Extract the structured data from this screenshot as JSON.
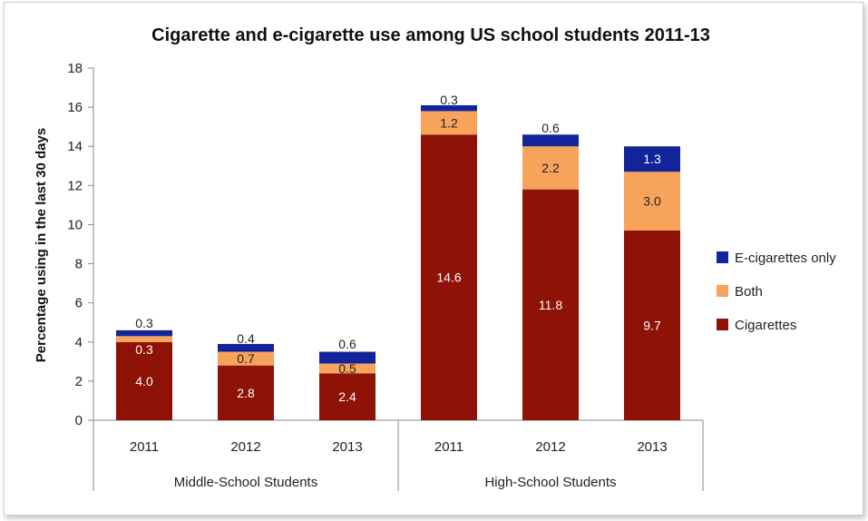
{
  "chart_data": {
    "type": "bar",
    "stacked": true,
    "title": "Cigarette and e-cigarette use among US school students 2011-13",
    "ylabel": "Percentage using in the last 30 days",
    "ylim": [
      0,
      18
    ],
    "yticks": [
      0,
      2,
      4,
      6,
      8,
      10,
      12,
      14,
      16,
      18
    ],
    "grid": false,
    "legend_position": "right",
    "groups": [
      "Middle-School Students",
      "High-School Students"
    ],
    "categories": [
      "2011",
      "2012",
      "2013",
      "2011",
      "2012",
      "2013"
    ],
    "category_group": [
      0,
      0,
      0,
      1,
      1,
      1
    ],
    "series": [
      {
        "name": "Cigarettes",
        "color": "#8e1206",
        "values": [
          4.0,
          2.8,
          2.4,
          14.6,
          11.8,
          9.7
        ],
        "labels": [
          "4.0",
          "2.8",
          "2.4",
          "14.6",
          "11.8",
          "9.7"
        ]
      },
      {
        "name": "Both",
        "color": "#f7a35c",
        "values": [
          0.3,
          0.7,
          0.5,
          1.2,
          2.2,
          3.0
        ],
        "labels": [
          "0.3",
          "0.7",
          "0.5",
          "1.2",
          "2.2",
          "3.0"
        ]
      },
      {
        "name": "E-cigarettes only",
        "color": "#13239a",
        "values": [
          0.3,
          0.4,
          0.6,
          0.3,
          0.6,
          1.3
        ],
        "labels": [
          "0.3",
          "0.4",
          "0.6",
          "0.3",
          "0.6",
          "1.3"
        ]
      }
    ],
    "legend_order": [
      "E-cigarettes only",
      "Both",
      "Cigarettes"
    ]
  }
}
